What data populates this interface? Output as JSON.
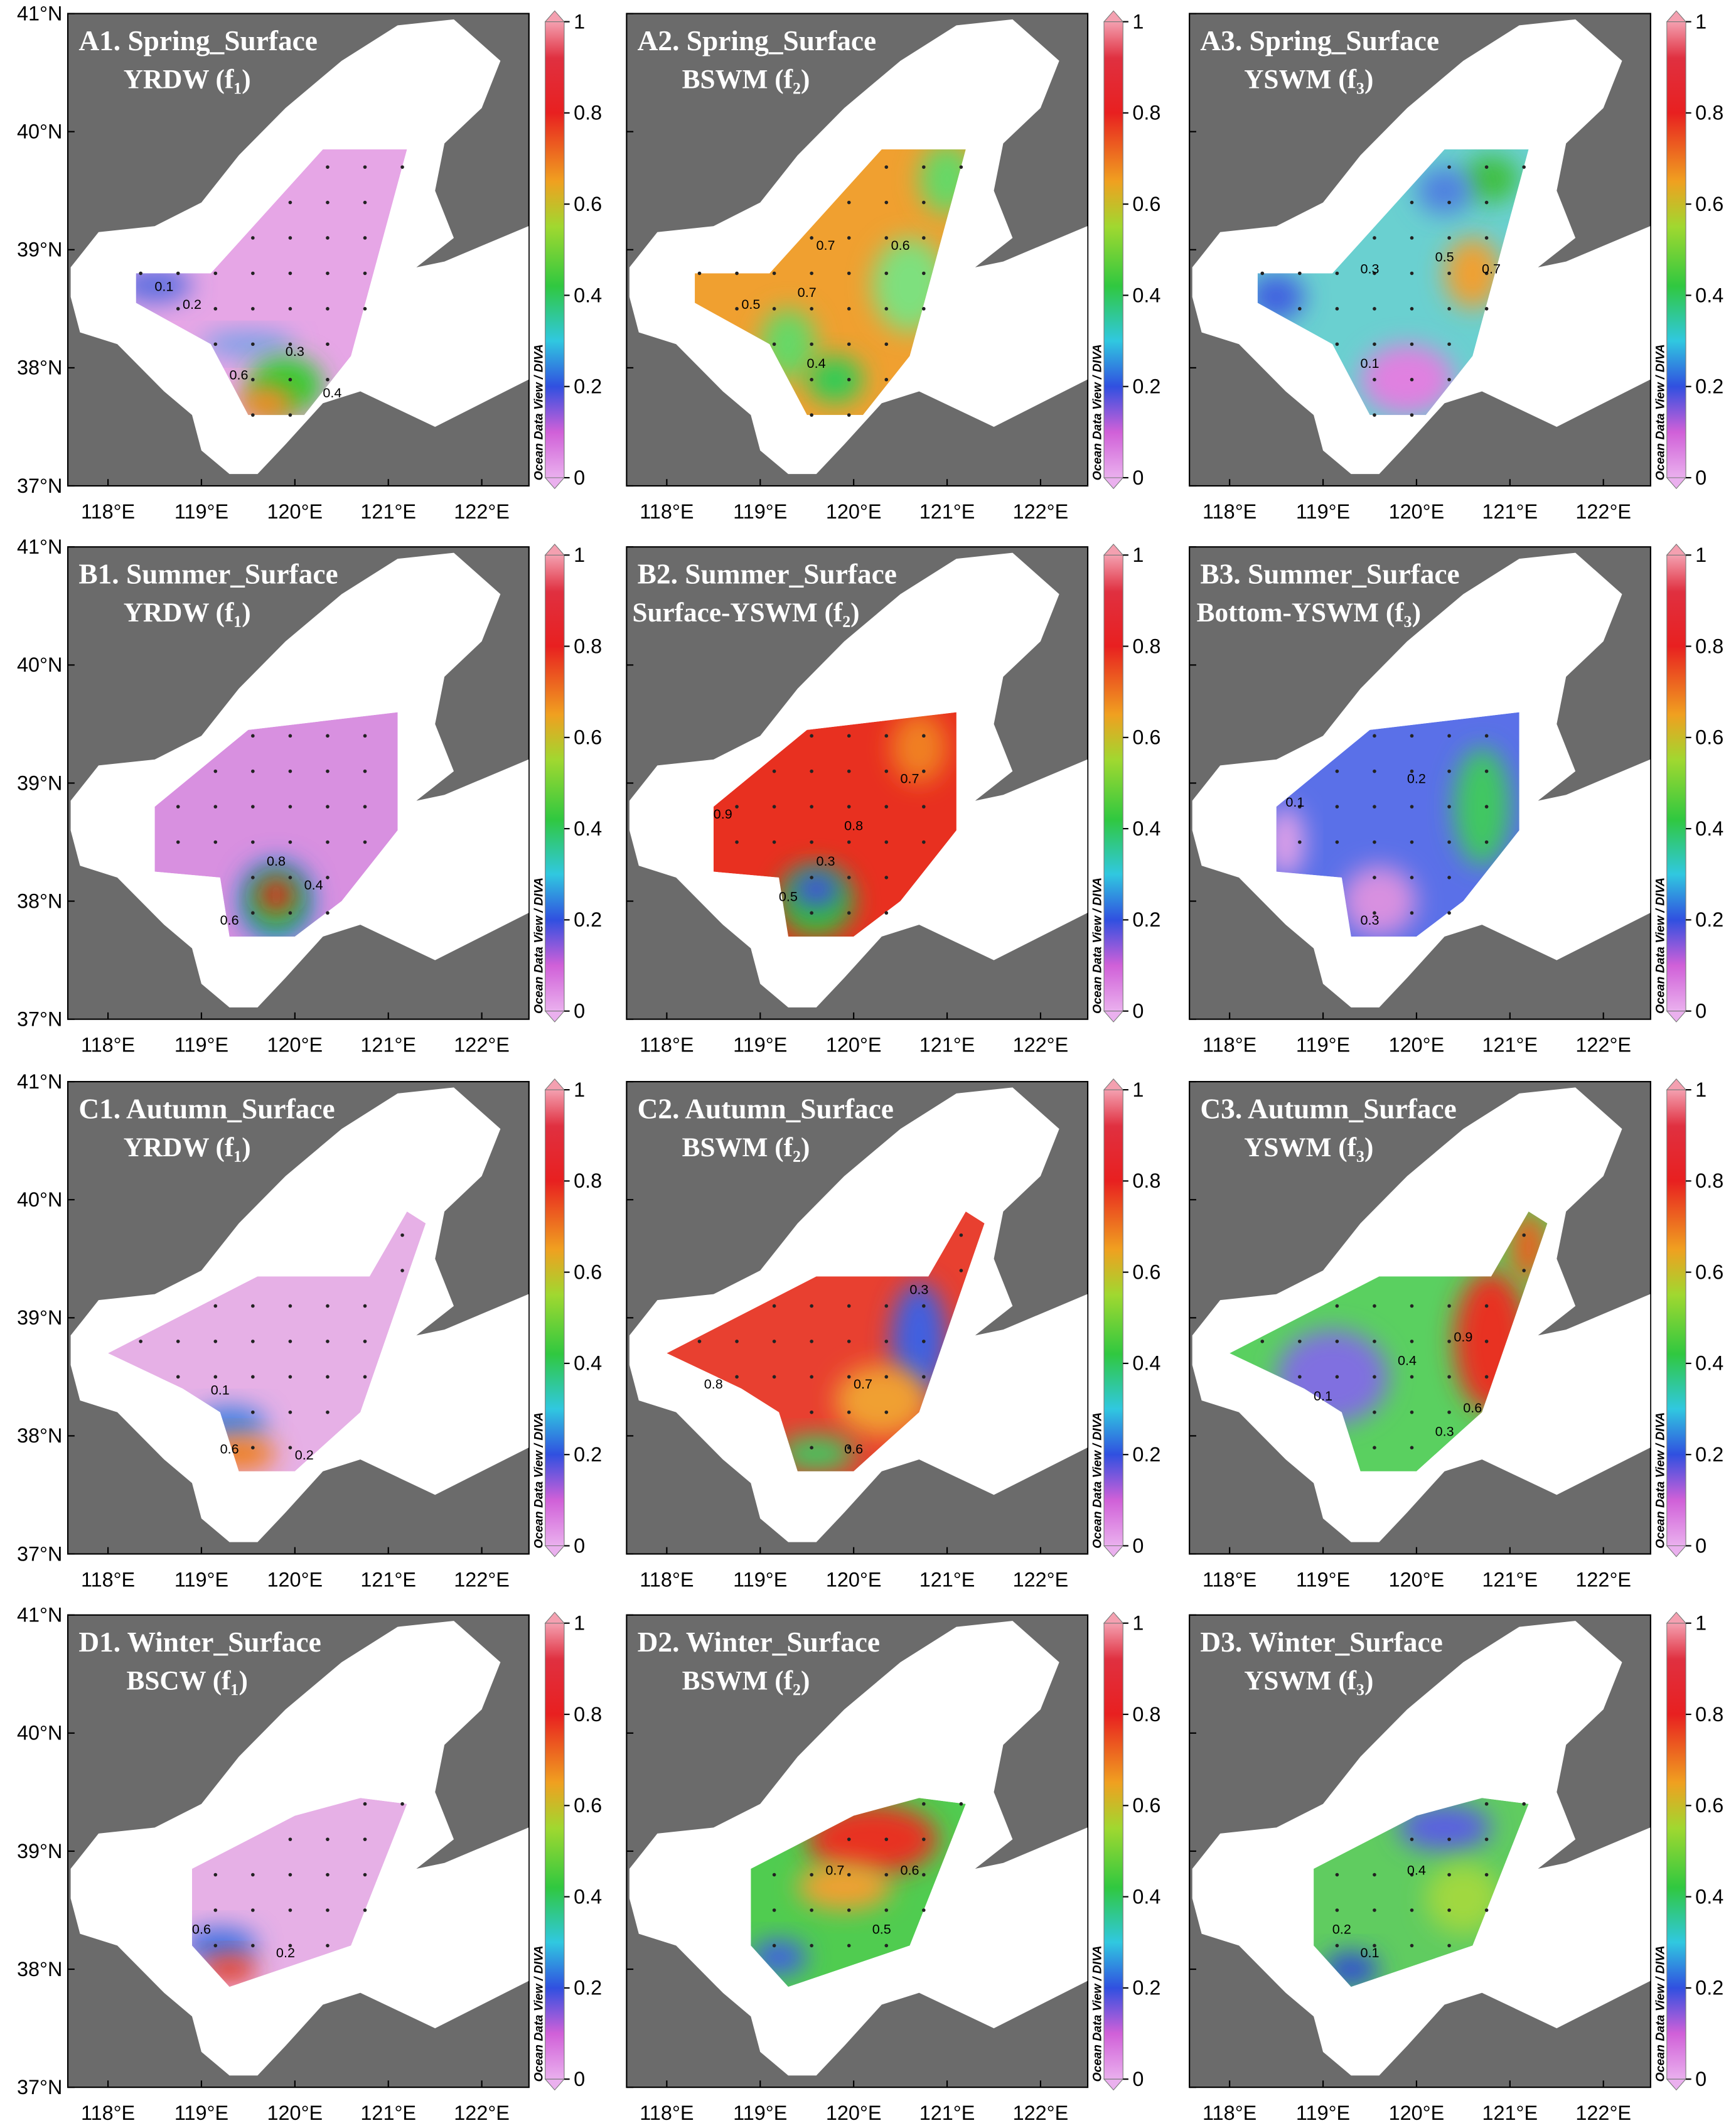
{
  "lon_labels": [
    "118°E",
    "119°E",
    "120°E",
    "121°E",
    "122°E"
  ],
  "lat_labels": [
    "41°N",
    "40°N",
    "39°N",
    "38°N",
    "37°N"
  ],
  "colorbar": {
    "label": "Ocean Data View / DIVA",
    "ticks": [
      "1",
      "0.8",
      "0.6",
      "0.4",
      "0.2",
      "0"
    ]
  },
  "panels": [
    {
      "title": "A1. Spring_Surface",
      "subtitle": "YRDW (f₁)",
      "contour_labels": [
        "0.1",
        "0.2",
        "0.3",
        "0.6",
        "0.4"
      ]
    },
    {
      "title": "A2. Spring_Surface",
      "subtitle": "BSWM (f₂)",
      "contour_labels": [
        "0.7",
        "0.6",
        "0.7",
        "0.4",
        "0.5"
      ]
    },
    {
      "title": "A3. Spring_Surface",
      "subtitle": "YSWM (f₃)",
      "contour_labels": [
        "0.3",
        "0.5",
        "0.7",
        "0.1"
      ]
    },
    {
      "title": "B1. Summer_Surface",
      "subtitle": "YRDW (f₁)",
      "contour_labels": [
        "0.8",
        "0.4",
        "0.6"
      ]
    },
    {
      "title": "B2. Summer_Surface",
      "subtitle": "Surface-YSWM (f₂)",
      "contour_labels": [
        "0.9",
        "0.7",
        "0.8",
        "0.3",
        "0.5"
      ]
    },
    {
      "title": "B3. Summer_Surface",
      "subtitle": "Bottom-YSWM (f₃)",
      "contour_labels": [
        "0.2",
        "0.1",
        "0.3"
      ]
    },
    {
      "title": "C1. Autumn_Surface",
      "subtitle": "YRDW (f₁)",
      "contour_labels": [
        "0.1",
        "0.6",
        "0.2"
      ]
    },
    {
      "title": "C2. Autumn_Surface",
      "subtitle": "BSWM (f₂)",
      "contour_labels": [
        "0.8",
        "0.7",
        "0.6",
        "0.3"
      ]
    },
    {
      "title": "C3. Autumn_Surface",
      "subtitle": "YSWM (f₃)",
      "contour_labels": [
        "0.9",
        "0.4",
        "0.3",
        "0.1",
        "0.6"
      ]
    },
    {
      "title": "D1. Winter_Surface",
      "subtitle": "BSCW (f₁)",
      "contour_labels": [
        "0.6",
        "0.2"
      ]
    },
    {
      "title": "D2. Winter_Surface",
      "subtitle": "BSWM (f₂)",
      "contour_labels": [
        "0.7",
        "0.6",
        "0.5"
      ]
    },
    {
      "title": "D3. Winter_Surface",
      "subtitle": "YSWM (f₃)",
      "contour_labels": [
        "0.4",
        "0.2",
        "0.1"
      ]
    }
  ]
}
